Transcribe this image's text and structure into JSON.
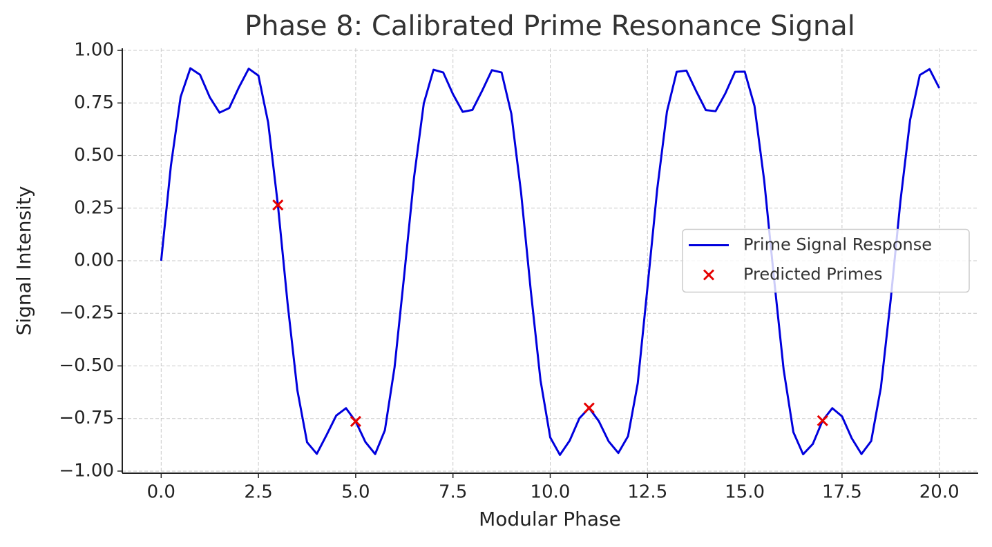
{
  "chart_data": {
    "type": "line",
    "title": "Phase 8: Calibrated Prime Resonance Signal",
    "x_label": "Modular Phase",
    "y_label": "Signal Intensity",
    "xlim": [
      -1,
      21
    ],
    "ylim": [
      -1.01,
      1.01
    ],
    "xticks": [
      {
        "value": 0,
        "label": "0.0"
      },
      2.5,
      {
        "value": 5,
        "label": "5.0"
      },
      7.5,
      {
        "value": 10,
        "label": "10.0"
      },
      12.5,
      {
        "value": 15,
        "label": "15.0"
      },
      17.5,
      {
        "value": 20,
        "label": "20.0"
      }
    ],
    "yticks": [
      {
        "value": -1,
        "label": "−1.00"
      },
      {
        "value": -0.75,
        "label": "−0.75"
      },
      {
        "value": -0.5,
        "label": "−0.50"
      },
      {
        "value": -0.25,
        "label": "−0.25"
      },
      {
        "value": 0,
        "label": "0.00"
      },
      {
        "value": 0.25,
        "label": "0.25"
      },
      {
        "value": 0.5,
        "label": "0.50"
      },
      {
        "value": 0.75,
        "label": "0.75"
      },
      {
        "value": 1,
        "label": "1.00"
      }
    ],
    "grid": true,
    "legend": "center right",
    "series": [
      {
        "name": "Prime Signal Response",
        "type": "line",
        "color": "#0000dd",
        "x": [
          0,
          0.25,
          0.5,
          0.75,
          1,
          1.25,
          1.5,
          1.75,
          2,
          2.25,
          2.5,
          2.75,
          3,
          3.25,
          3.5,
          3.75,
          4,
          4.25,
          4.5,
          4.75,
          5,
          5.25,
          5.5,
          5.75,
          6,
          6.25,
          6.5,
          6.75,
          7,
          7.25,
          7.5,
          7.75,
          8,
          8.25,
          8.5,
          8.75,
          9,
          9.25,
          9.5,
          9.75,
          10,
          10.25,
          10.5,
          10.75,
          11,
          11.25,
          11.5,
          11.75,
          12,
          12.25,
          12.5,
          12.75,
          13,
          13.25,
          13.5,
          13.75,
          14,
          14.25,
          14.5,
          14.75,
          15,
          15.25,
          15.5,
          15.75,
          16,
          16.25,
          16.5,
          16.75,
          17,
          17.25,
          17.5,
          17.75,
          18,
          18.25,
          18.5,
          18.75,
          19,
          19.25,
          19.5,
          19.75,
          20
        ],
        "values": [
          0,
          0.452,
          0.779,
          0.915,
          0.884,
          0.777,
          0.704,
          0.726,
          0.825,
          0.913,
          0.88,
          0.657,
          0.265,
          -0.204,
          -0.615,
          -0.863,
          -0.918,
          -0.829,
          -0.736,
          -0.701,
          -0.764,
          -0.862,
          -0.919,
          -0.806,
          -0.505,
          -0.063,
          0.397,
          0.748,
          0.908,
          0.895,
          0.792,
          0.708,
          0.717,
          0.808,
          0.906,
          0.895,
          0.699,
          0.325,
          -0.142,
          -0.568,
          -0.84,
          -0.923,
          -0.855,
          -0.749,
          -0.7,
          -0.763,
          -0.858,
          -0.914,
          -0.834,
          -0.582,
          -0.126,
          0.34,
          0.709,
          0.898,
          0.904,
          0.807,
          0.716,
          0.711,
          0.795,
          0.898,
          0.899,
          0.736,
          0.381,
          -0.08,
          -0.518,
          -0.815,
          -0.92,
          -0.871,
          -0.76,
          -0.701,
          -0.74,
          -0.844,
          -0.919,
          -0.857,
          -0.602,
          -0.187,
          0.281,
          0.669,
          0.883,
          0.911,
          0.821
        ]
      },
      {
        "name": "Predicted Primes",
        "type": "scatter",
        "marker": "x",
        "color": "#e60000",
        "x": [
          3,
          5,
          11,
          17
        ],
        "values": [
          0.265,
          -0.764,
          -0.7,
          -0.76
        ]
      }
    ]
  }
}
